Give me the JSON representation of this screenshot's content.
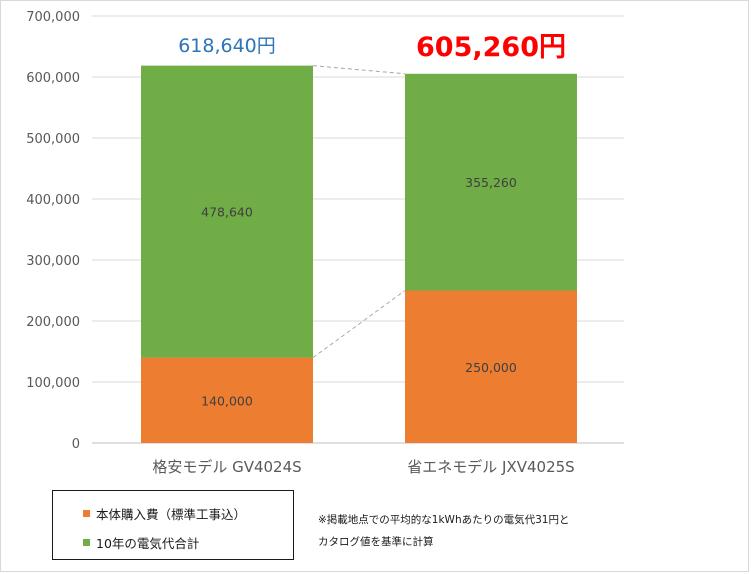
{
  "chart_data": {
    "type": "bar",
    "stacked": true,
    "categories": [
      "格安モデル GV4024S",
      "省エネモデル JXV4025S"
    ],
    "series": [
      {
        "name": "本体購入費（標準工事込）",
        "color": "#ed7d31",
        "values": [
          140000,
          250000
        ],
        "labels": [
          "140,000",
          "250,000"
        ]
      },
      {
        "name": "10年の電気代合計",
        "color": "#70ad47",
        "values": [
          478640,
          355260
        ],
        "labels": [
          "478,640",
          "355,260"
        ]
      }
    ],
    "totals": [
      "618,640円",
      "605,260円"
    ],
    "total_colors": [
      "#2e75b6",
      "#ff0000"
    ],
    "ylim": [
      0,
      700000
    ],
    "yticks": [
      0,
      100000,
      200000,
      300000,
      400000,
      500000,
      600000,
      700000
    ],
    "ytick_labels": [
      "0",
      "100,000",
      "200,000",
      "300,000",
      "400,000",
      "500,000",
      "600,000",
      "700,000"
    ],
    "grid": true,
    "legend_position": "bottom-left",
    "title": "",
    "xlabel": "",
    "ylabel": ""
  },
  "note": {
    "line1": "※掲載地点での平均的な1kWhあたりの電気代31円と",
    "line2": "カタログ値を基準に計算"
  }
}
